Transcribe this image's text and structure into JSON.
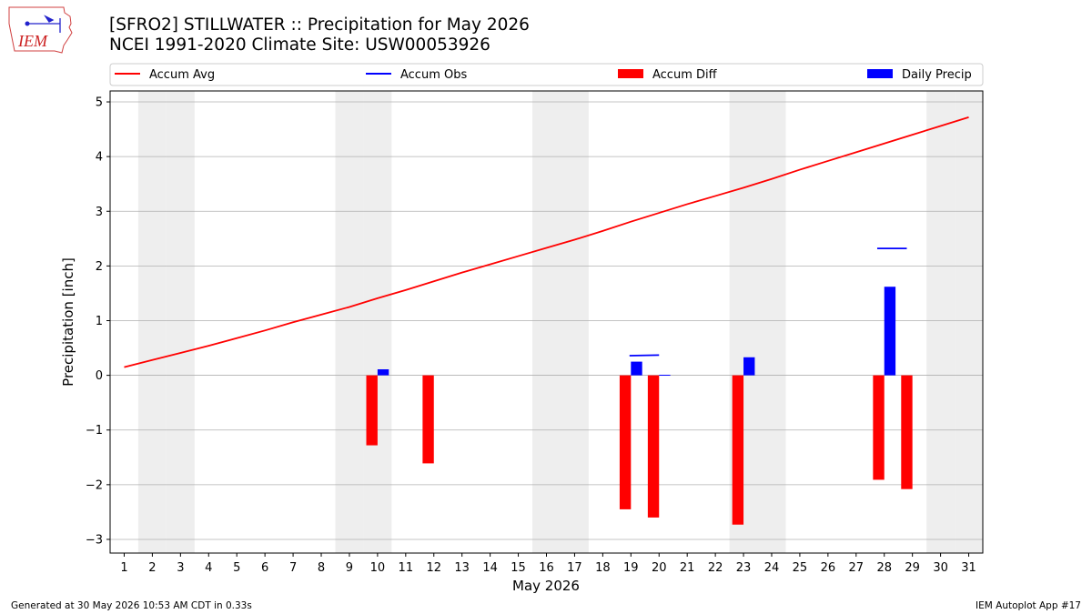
{
  "header": {
    "title_line1": "[SFRO2] STILLWATER :: Precipitation for May 2026",
    "title_line2": "NCEI 1991-2020 Climate Site: USW00053926",
    "logo_text": "IEM"
  },
  "footer": {
    "generated": "Generated at 30 May 2026 10:53 AM CDT in 0.33s",
    "app": "IEM Autoplot App #17"
  },
  "colors": {
    "accum_avg": "#ff0000",
    "accum_obs": "#0000ff",
    "accum_diff": "#ff0000",
    "daily_precip": "#0000ff",
    "weekend_shade": "#eeeeee",
    "grid": "#b0b0b0"
  },
  "chart_data": {
    "type": "bar",
    "xlabel": "May 2026",
    "ylabel": "Precipitation [inch]",
    "xlim": [
      0.5,
      31.5
    ],
    "ylim": [
      -3.25,
      5.2
    ],
    "yticks": [
      -3,
      -2,
      -1,
      0,
      1,
      2,
      3,
      4,
      5
    ],
    "xticks": [
      1,
      2,
      3,
      4,
      5,
      6,
      7,
      8,
      9,
      10,
      11,
      12,
      13,
      14,
      15,
      16,
      17,
      18,
      19,
      20,
      21,
      22,
      23,
      24,
      25,
      26,
      27,
      28,
      29,
      30,
      31
    ],
    "grid": "y",
    "legend_position": "top",
    "weekend_days": [
      2,
      3,
      9,
      10,
      16,
      17,
      23,
      24,
      30,
      31
    ],
    "series": [
      {
        "name": "Accum Avg",
        "kind": "line",
        "x": [
          1,
          2,
          3,
          4,
          5,
          6,
          7,
          8,
          9,
          10,
          11,
          12,
          13,
          14,
          15,
          16,
          17,
          18,
          19,
          20,
          21,
          22,
          23,
          24,
          25,
          26,
          27,
          28,
          29,
          30,
          31
        ],
        "values": [
          0.15,
          0.28,
          0.41,
          0.54,
          0.68,
          0.82,
          0.97,
          1.11,
          1.25,
          1.41,
          1.56,
          1.72,
          1.88,
          2.03,
          2.18,
          2.33,
          2.48,
          2.64,
          2.81,
          2.97,
          3.13,
          3.28,
          3.43,
          3.59,
          3.76,
          3.92,
          4.08,
          4.24,
          4.4,
          4.56,
          4.72
        ]
      },
      {
        "name": "Accum Obs",
        "kind": "step",
        "segments": [
          {
            "x0": 18.95,
            "x1": 20.0,
            "y0": 0.36,
            "y1": 0.37
          },
          {
            "x0": 27.75,
            "x1": 28.8,
            "y0": 2.32,
            "y1": 2.32
          }
        ]
      },
      {
        "name": "Accum Diff",
        "kind": "bar",
        "offset": -0.2,
        "x": [
          10,
          12,
          19,
          20,
          23,
          28,
          29
        ],
        "values": [
          -1.28,
          -1.61,
          -2.45,
          -2.6,
          -2.73,
          -1.91,
          -2.08
        ]
      },
      {
        "name": "Daily Precip",
        "kind": "bar",
        "offset": 0.2,
        "x": [
          10,
          19,
          20,
          23,
          28
        ],
        "values": [
          0.11,
          0.25,
          0.01,
          0.33,
          1.62
        ]
      }
    ]
  }
}
